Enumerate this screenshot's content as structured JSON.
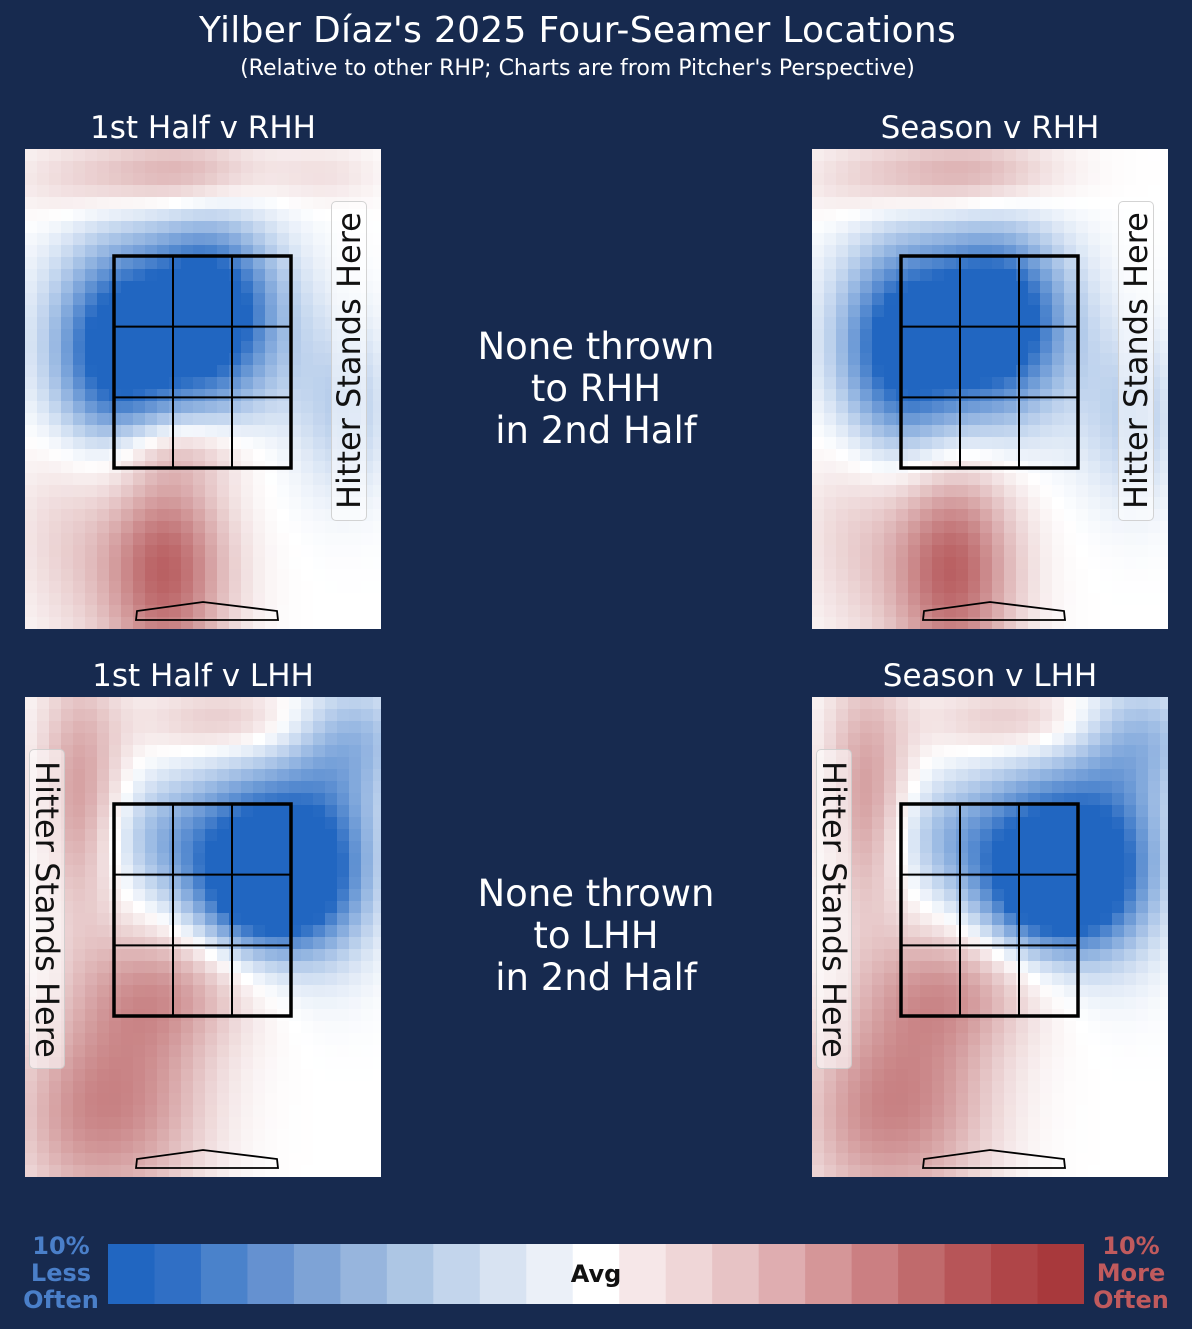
{
  "title": "Yilber Díaz's 2025 Four-Seamer Locations",
  "subtitle": "(Relative to other RHP; Charts are from Pitcher's Perspective)",
  "colors": {
    "background": "#172a4f",
    "less_often": "#2166c1",
    "avg": "#ffffff",
    "more_often": "#a8393c",
    "less_label": "#4a7fc9",
    "more_label": "#c05a5d"
  },
  "chart_data": [
    {
      "type": "heatmap",
      "title": "1st Half v RHH",
      "side_label": "Hitter Stands Here",
      "hitter_side": "right",
      "value_scale": "percent difference vs. league RHP (-10 = 10% less often, +10 = 10% more often)",
      "hotspots": [
        {
          "region": "top edge, center",
          "value": 4
        },
        {
          "region": "top-left",
          "value": 2
        },
        {
          "region": "top-right",
          "value": 1.5
        },
        {
          "region": "upper-middle zone (top-middle cell)",
          "value": -9
        },
        {
          "region": "middle-left of zone (glove side)",
          "value": -8
        },
        {
          "region": "middle zone",
          "value": -7
        },
        {
          "region": "lower-right outside zone",
          "value": -3
        },
        {
          "region": "below zone, left-center",
          "value": 8
        },
        {
          "region": "bottom-left",
          "value": 2
        },
        {
          "region": "below-left zone edge",
          "value": 3
        }
      ]
    },
    {
      "type": "heatmap",
      "title": "Season v RHH",
      "side_label": "Hitter Stands Here",
      "hitter_side": "right",
      "value_scale": "percent difference vs. league RHP",
      "hotspots": [
        {
          "region": "top edge, center",
          "value": 4
        },
        {
          "region": "top-left",
          "value": 2
        },
        {
          "region": "upper-middle zone",
          "value": -9
        },
        {
          "region": "middle-left of zone",
          "value": -8
        },
        {
          "region": "middle zone",
          "value": -7
        },
        {
          "region": "lower-right outside zone",
          "value": -3
        },
        {
          "region": "below zone, left-center",
          "value": 8
        },
        {
          "region": "bottom-left",
          "value": 2
        }
      ]
    },
    {
      "type": "heatmap",
      "title": "1st Half v LHH",
      "side_label": "Hitter Stands Here",
      "hitter_side": "left",
      "value_scale": "percent difference vs. league RHP",
      "hotspots": [
        {
          "region": "upper-right zone",
          "value": -10
        },
        {
          "region": "middle-right zone",
          "value": -9
        },
        {
          "region": "right of zone",
          "value": -6
        },
        {
          "region": "top-right corner",
          "value": -4
        },
        {
          "region": "upper-left zone",
          "value": -3
        },
        {
          "region": "left edge, upper",
          "value": 5
        },
        {
          "region": "top, center-right",
          "value": 3
        },
        {
          "region": "lower-middle zone",
          "value": 4
        },
        {
          "region": "below zone, left-center",
          "value": 5
        },
        {
          "region": "bottom-left",
          "value": 3
        }
      ]
    },
    {
      "type": "heatmap",
      "title": "Season v LHH",
      "side_label": "Hitter Stands Here",
      "hitter_side": "left",
      "value_scale": "percent difference vs. league RHP",
      "hotspots": [
        {
          "region": "upper-right zone",
          "value": -10
        },
        {
          "region": "middle-right zone",
          "value": -9
        },
        {
          "region": "right of zone",
          "value": -6
        },
        {
          "region": "top-right corner",
          "value": -4
        },
        {
          "region": "upper-left zone",
          "value": -3
        },
        {
          "region": "left edge, upper",
          "value": 5
        },
        {
          "region": "top, center-right",
          "value": 3
        },
        {
          "region": "lower-middle zone",
          "value": 4
        },
        {
          "region": "below zone, left-center",
          "value": 5
        },
        {
          "region": "bottom-left",
          "value": 3
        }
      ]
    }
  ],
  "none_rhh": {
    "line1": "None thrown",
    "line2": "to RHH",
    "line3": "in 2nd Half"
  },
  "none_lhh": {
    "line1": "None thrown",
    "line2": "to LHH",
    "line3": "in 2nd Half"
  },
  "legend": {
    "left": {
      "line1": "10%",
      "line2": "Less",
      "line3": "Often"
    },
    "right": {
      "line1": "10%",
      "line2": "More",
      "line3": "Often"
    },
    "avg": "Avg",
    "colors": [
      "#2166c1",
      "#306fc5",
      "#4a82cb",
      "#6591d0",
      "#7ea3d6",
      "#97b5dd",
      "#adc6e4",
      "#c3d5ec",
      "#d8e3f2",
      "#ebf0f8",
      "#ffffff",
      "#f6e7e8",
      "#efd6d7",
      "#e7c3c5",
      "#dfadb0",
      "#d59698",
      "#cb7f82",
      "#c06a6c",
      "#b75558",
      "#af4548",
      "#a8393c"
    ]
  }
}
